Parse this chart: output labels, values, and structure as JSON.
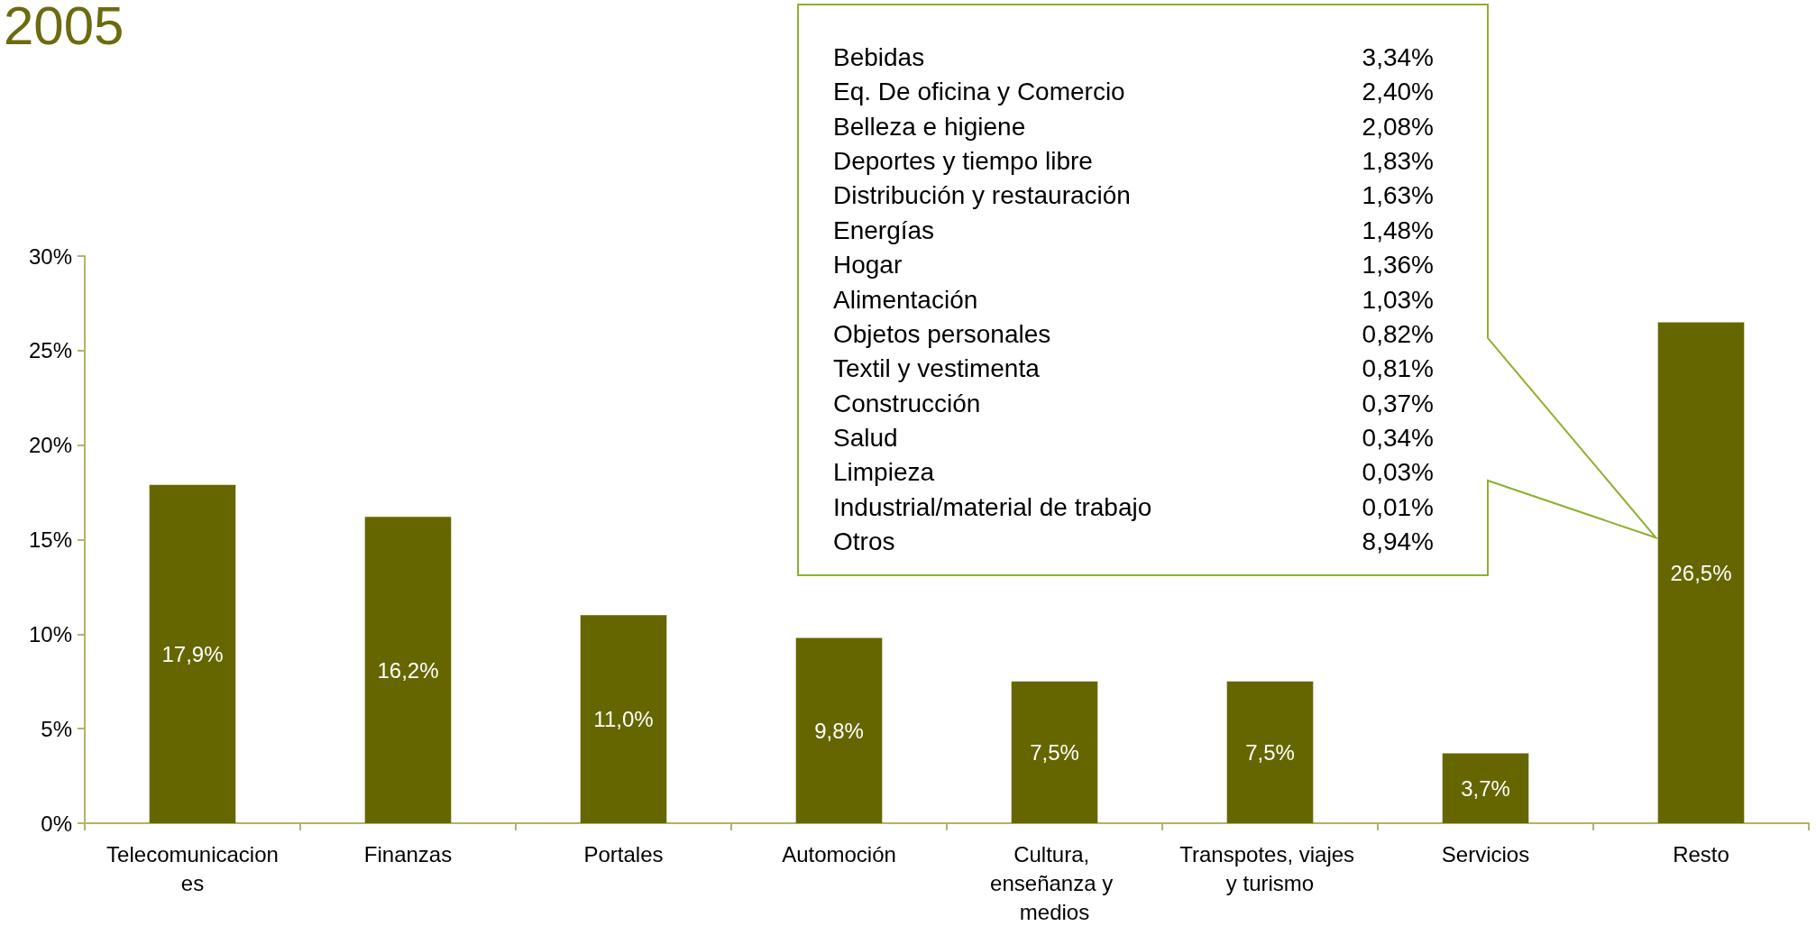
{
  "chart_data": {
    "type": "bar",
    "title": "2005",
    "categories": [
      "Telecomunicaciones",
      "Finanzas",
      "Portales",
      "Automoción",
      "Cultura, enseñanza y medios",
      "Transpotes, viajes y turismo",
      "Servicios",
      "Resto"
    ],
    "values": [
      17.9,
      16.2,
      11.0,
      9.8,
      7.5,
      7.5,
      3.7,
      26.5
    ],
    "value_labels": [
      "17,9%",
      "16,2%",
      "11,0%",
      "9,8%",
      "7,5%",
      "7,5%",
      "3,7%",
      "26,5%"
    ],
    "color": "#666600",
    "ylim": [
      0,
      30
    ],
    "yticks": [
      {
        "value": 0,
        "label": "0%"
      },
      {
        "value": 5,
        "label": "5%"
      },
      {
        "value": 10,
        "label": "10%"
      },
      {
        "value": 15,
        "label": "15%"
      },
      {
        "value": 20,
        "label": "20%"
      },
      {
        "value": 25,
        "label": "25%"
      },
      {
        "value": 30,
        "label": "30%"
      }
    ],
    "grid": false,
    "annotations": [
      "Bebidas",
      "3,34%",
      "Eq. De oficina y Comercio",
      "2,40%",
      "Belleza e higiene",
      "2,08%",
      "Deportes y tiempo libre",
      "1,83%",
      "Distribución y restauración",
      "1,63%",
      "Energías",
      "1,48%",
      "Hogar",
      "1,36%",
      "Alimentación",
      "1,03%",
      "Objetos personales",
      "0,82%",
      "Textil y vestimenta",
      "0,81%",
      "Construcción",
      "0,37%",
      "Salud",
      "0,34%",
      "Limpieza",
      "0,03%",
      "Industrial/material de trabajo",
      "0,01%",
      "Otros",
      "8,94%"
    ]
  }
}
